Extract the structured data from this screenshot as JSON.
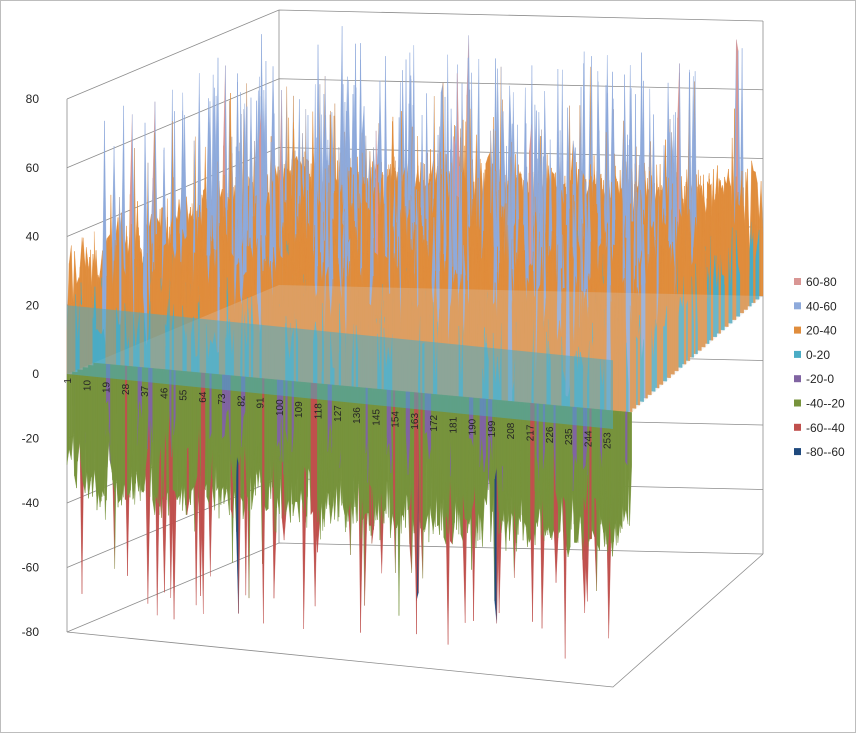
{
  "chart_data": {
    "type": "surface",
    "title": "",
    "xlabel": "",
    "ylabel": "",
    "zlim": [
      -80,
      80
    ],
    "z_ticks": [
      "80",
      "60",
      "40",
      "20",
      "0",
      "-20",
      "-40",
      "-60",
      "-80"
    ],
    "x_range": [
      1,
      256
    ],
    "x_ticks": [
      "1",
      "10",
      "19",
      "28",
      "37",
      "46",
      "55",
      "64",
      "73",
      "82",
      "91",
      "100",
      "109",
      "118",
      "127",
      "136",
      "145",
      "154",
      "163",
      "172",
      "181",
      "190",
      "199",
      "208",
      "217",
      "226",
      "235",
      "244",
      "253"
    ],
    "grid": true,
    "legend_position": "right",
    "legend": [
      {
        "label": "60-80",
        "color": "#d99694"
      },
      {
        "label": "40-60",
        "color": "#8eaadb"
      },
      {
        "label": "20-40",
        "color": "#e08d3c"
      },
      {
        "label": "0-20",
        "color": "#4aacc5"
      },
      {
        "label": "-20-0",
        "color": "#8064a2"
      },
      {
        "label": "-40--20",
        "color": "#77933c"
      },
      {
        "label": "-60--40",
        "color": "#c0504d"
      },
      {
        "label": "-80--60",
        "color": "#1f497d"
      }
    ]
  }
}
